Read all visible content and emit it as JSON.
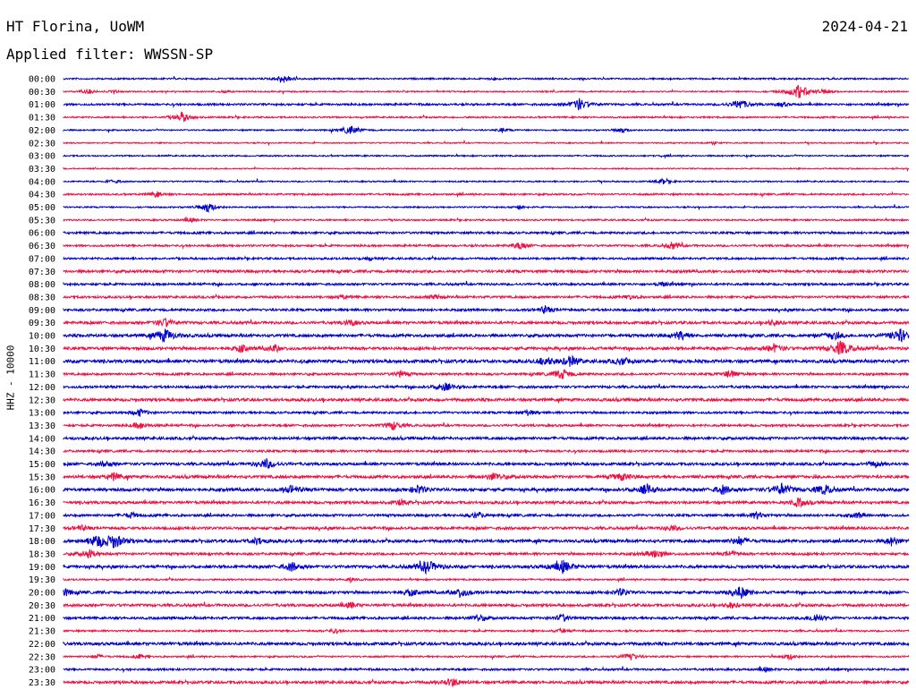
{
  "header": {
    "station": "HT Florina, UoWM",
    "date": "2024-04-21",
    "filter": "Applied filter: WWSSN-SP"
  },
  "chart_data": {
    "type": "line",
    "channel_label": "HHZ - 10000",
    "colors": [
      "#0000cc",
      "#ee1144"
    ],
    "rows": [
      {
        "label": "00:00",
        "activity": 0.2,
        "events": [
          [
            0.26,
            0.6
          ],
          [
            0.51,
            0.2
          ]
        ]
      },
      {
        "label": "00:30",
        "activity": 0.15,
        "events": [
          [
            0.03,
            0.3
          ],
          [
            0.06,
            0.2
          ],
          [
            0.19,
            0.2
          ],
          [
            0.87,
            1.0
          ],
          [
            0.9,
            0.3
          ]
        ]
      },
      {
        "label": "01:00",
        "activity": 0.3,
        "events": [
          [
            0.61,
            0.8
          ],
          [
            0.8,
            0.7
          ],
          [
            0.85,
            0.3
          ]
        ]
      },
      {
        "label": "01:30",
        "activity": 0.2,
        "events": [
          [
            0.14,
            0.7
          ]
        ]
      },
      {
        "label": "02:00",
        "activity": 0.15,
        "events": [
          [
            0.34,
            0.7
          ],
          [
            0.52,
            0.3
          ],
          [
            0.66,
            0.4
          ]
        ]
      },
      {
        "label": "02:30",
        "activity": 0.1,
        "events": [
          [
            0.77,
            0.2
          ]
        ]
      },
      {
        "label": "03:00",
        "activity": 0.15,
        "events": []
      },
      {
        "label": "03:30",
        "activity": 0.1,
        "events": []
      },
      {
        "label": "04:00",
        "activity": 0.15,
        "events": [
          [
            0.06,
            0.3
          ],
          [
            0.71,
            0.4
          ]
        ]
      },
      {
        "label": "04:30",
        "activity": 0.25,
        "events": [
          [
            0.11,
            0.4
          ]
        ]
      },
      {
        "label": "05:00",
        "activity": 0.15,
        "events": [
          [
            0.17,
            0.7
          ],
          [
            0.54,
            0.3
          ]
        ]
      },
      {
        "label": "05:30",
        "activity": 0.2,
        "events": [
          [
            0.15,
            0.3
          ]
        ]
      },
      {
        "label": "06:00",
        "activity": 0.35,
        "events": []
      },
      {
        "label": "06:30",
        "activity": 0.3,
        "events": [
          [
            0.54,
            0.5
          ],
          [
            0.72,
            0.5
          ]
        ]
      },
      {
        "label": "07:00",
        "activity": 0.3,
        "events": [
          [
            0.36,
            0.3
          ]
        ]
      },
      {
        "label": "07:30",
        "activity": 0.45,
        "events": []
      },
      {
        "label": "08:00",
        "activity": 0.35,
        "events": [
          [
            0.71,
            0.3
          ]
        ]
      },
      {
        "label": "08:30",
        "activity": 0.35,
        "events": [
          [
            0.33,
            0.3
          ],
          [
            0.44,
            0.3
          ],
          [
            0.67,
            0.3
          ]
        ]
      },
      {
        "label": "09:00",
        "activity": 0.4,
        "events": [
          [
            0.57,
            0.5
          ]
        ]
      },
      {
        "label": "09:30",
        "activity": 0.45,
        "events": [
          [
            0.12,
            0.6
          ],
          [
            0.34,
            0.4
          ],
          [
            0.84,
            0.4
          ]
        ]
      },
      {
        "label": "10:00",
        "activity": 0.5,
        "events": [
          [
            0.12,
            0.9
          ],
          [
            0.73,
            0.6
          ],
          [
            0.91,
            0.6
          ],
          [
            0.99,
            0.9
          ]
        ]
      },
      {
        "label": "10:30",
        "activity": 0.5,
        "events": [
          [
            0.21,
            0.5
          ],
          [
            0.25,
            0.5
          ],
          [
            0.84,
            0.6
          ],
          [
            0.92,
            1.0
          ]
        ]
      },
      {
        "label": "11:00",
        "activity": 0.55,
        "events": [
          [
            0.57,
            0.6
          ],
          [
            0.6,
            0.7
          ],
          [
            0.66,
            0.5
          ]
        ]
      },
      {
        "label": "11:30",
        "activity": 0.35,
        "events": [
          [
            0.4,
            0.5
          ],
          [
            0.59,
            0.8
          ],
          [
            0.79,
            0.6
          ]
        ]
      },
      {
        "label": "12:00",
        "activity": 0.4,
        "events": [
          [
            0.45,
            0.6
          ]
        ]
      },
      {
        "label": "12:30",
        "activity": 0.5,
        "events": []
      },
      {
        "label": "13:00",
        "activity": 0.35,
        "events": [
          [
            0.09,
            0.5
          ],
          [
            0.55,
            0.4
          ]
        ]
      },
      {
        "label": "13:30",
        "activity": 0.35,
        "events": [
          [
            0.09,
            0.5
          ],
          [
            0.39,
            0.6
          ]
        ]
      },
      {
        "label": "14:00",
        "activity": 0.45,
        "events": []
      },
      {
        "label": "14:30",
        "activity": 0.35,
        "events": []
      },
      {
        "label": "15:00",
        "activity": 0.45,
        "events": [
          [
            0.05,
            0.4
          ],
          [
            0.24,
            0.7
          ],
          [
            0.96,
            0.4
          ]
        ]
      },
      {
        "label": "15:30",
        "activity": 0.5,
        "events": [
          [
            0.06,
            0.5
          ],
          [
            0.51,
            0.6
          ],
          [
            0.66,
            0.6
          ]
        ]
      },
      {
        "label": "16:00",
        "activity": 0.55,
        "events": [
          [
            0.27,
            0.6
          ],
          [
            0.42,
            0.6
          ],
          [
            0.69,
            0.7
          ],
          [
            0.78,
            0.6
          ],
          [
            0.85,
            0.8
          ],
          [
            0.9,
            0.7
          ]
        ]
      },
      {
        "label": "16:30",
        "activity": 0.45,
        "events": [
          [
            0.4,
            0.4
          ],
          [
            0.87,
            0.6
          ]
        ]
      },
      {
        "label": "17:00",
        "activity": 0.4,
        "events": [
          [
            0.08,
            0.4
          ],
          [
            0.49,
            0.4
          ],
          [
            0.82,
            0.5
          ],
          [
            0.94,
            0.4
          ]
        ]
      },
      {
        "label": "17:30",
        "activity": 0.45,
        "events": [
          [
            0.02,
            0.4
          ],
          [
            0.72,
            0.4
          ]
        ]
      },
      {
        "label": "18:00",
        "activity": 0.5,
        "events": [
          [
            0.04,
            0.8
          ],
          [
            0.06,
            0.9
          ],
          [
            0.23,
            0.5
          ],
          [
            0.8,
            0.6
          ],
          [
            0.98,
            0.6
          ]
        ]
      },
      {
        "label": "18:30",
        "activity": 0.4,
        "events": [
          [
            0.03,
            0.6
          ],
          [
            0.7,
            0.7
          ],
          [
            0.79,
            0.4
          ]
        ]
      },
      {
        "label": "19:00",
        "activity": 0.5,
        "events": [
          [
            0.27,
            0.6
          ],
          [
            0.43,
            0.9
          ],
          [
            0.59,
            0.9
          ]
        ]
      },
      {
        "label": "19:30",
        "activity": 0.2,
        "events": [
          [
            0.34,
            0.3
          ]
        ]
      },
      {
        "label": "20:00",
        "activity": 0.45,
        "events": [
          [
            0.0,
            0.6
          ],
          [
            0.41,
            0.5
          ],
          [
            0.47,
            0.7
          ],
          [
            0.66,
            0.5
          ],
          [
            0.8,
            0.8
          ]
        ]
      },
      {
        "label": "20:30",
        "activity": 0.45,
        "events": [
          [
            0.34,
            0.4
          ],
          [
            0.79,
            0.4
          ]
        ]
      },
      {
        "label": "21:00",
        "activity": 0.4,
        "events": [
          [
            0.49,
            0.5
          ],
          [
            0.59,
            0.5
          ],
          [
            0.89,
            0.6
          ]
        ]
      },
      {
        "label": "21:30",
        "activity": 0.25,
        "events": [
          [
            0.32,
            0.3
          ],
          [
            0.59,
            0.3
          ]
        ]
      },
      {
        "label": "22:00",
        "activity": 0.5,
        "events": []
      },
      {
        "label": "22:30",
        "activity": 0.2,
        "events": [
          [
            0.04,
            0.3
          ],
          [
            0.09,
            0.3
          ],
          [
            0.67,
            0.6
          ],
          [
            0.86,
            0.4
          ]
        ]
      },
      {
        "label": "23:00",
        "activity": 0.3,
        "events": [
          [
            0.83,
            0.3
          ]
        ]
      },
      {
        "label": "23:30",
        "activity": 0.45,
        "events": [
          [
            0.46,
            0.6
          ]
        ]
      }
    ]
  }
}
